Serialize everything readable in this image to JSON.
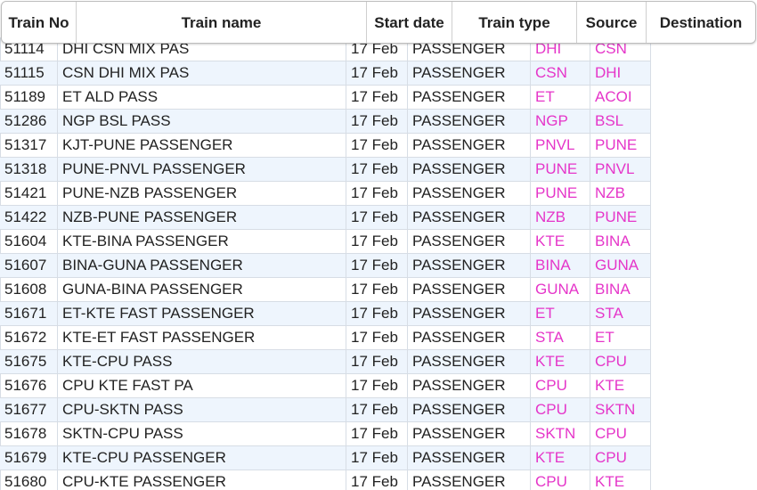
{
  "table": {
    "headers": {
      "train_no": "Train No",
      "train_name": "Train name",
      "start_date": "Start date",
      "train_type": "Train type",
      "source": "Source",
      "destination": "Destination"
    },
    "rows": [
      {
        "no": "51114",
        "name": "DHI CSN MIX PAS",
        "date": "17 Feb",
        "type": "PASSENGER",
        "src": "DHI",
        "dst": "CSN"
      },
      {
        "no": "51115",
        "name": "CSN DHI MIX PAS",
        "date": "17 Feb",
        "type": "PASSENGER",
        "src": "CSN",
        "dst": "DHI"
      },
      {
        "no": "51189",
        "name": "ET ALD PASS",
        "date": "17 Feb",
        "type": "PASSENGER",
        "src": "ET",
        "dst": "ACOI"
      },
      {
        "no": "51286",
        "name": "NGP BSL PASS",
        "date": "17 Feb",
        "type": "PASSENGER",
        "src": "NGP",
        "dst": "BSL"
      },
      {
        "no": "51317",
        "name": "KJT-PUNE PASSENGER",
        "date": "17 Feb",
        "type": "PASSENGER",
        "src": "PNVL",
        "dst": "PUNE"
      },
      {
        "no": "51318",
        "name": "PUNE-PNVL PASSENGER",
        "date": "17 Feb",
        "type": "PASSENGER",
        "src": "PUNE",
        "dst": "PNVL"
      },
      {
        "no": "51421",
        "name": "PUNE-NZB PASSENGER",
        "date": "17 Feb",
        "type": "PASSENGER",
        "src": "PUNE",
        "dst": "NZB"
      },
      {
        "no": "51422",
        "name": "NZB-PUNE PASSENGER",
        "date": "17 Feb",
        "type": "PASSENGER",
        "src": "NZB",
        "dst": "PUNE"
      },
      {
        "no": "51604",
        "name": "KTE-BINA PASSENGER",
        "date": "17 Feb",
        "type": "PASSENGER",
        "src": "KTE",
        "dst": "BINA"
      },
      {
        "no": "51607",
        "name": "BINA-GUNA PASSENGER",
        "date": "17 Feb",
        "type": "PASSENGER",
        "src": "BINA",
        "dst": "GUNA"
      },
      {
        "no": "51608",
        "name": "GUNA-BINA PASSENGER",
        "date": "17 Feb",
        "type": "PASSENGER",
        "src": "GUNA",
        "dst": "BINA"
      },
      {
        "no": "51671",
        "name": "ET-KTE FAST PASSENGER",
        "date": "17 Feb",
        "type": "PASSENGER",
        "src": "ET",
        "dst": "STA"
      },
      {
        "no": "51672",
        "name": "KTE-ET FAST PASSENGER",
        "date": "17 Feb",
        "type": "PASSENGER",
        "src": "STA",
        "dst": "ET"
      },
      {
        "no": "51675",
        "name": "KTE-CPU PASS",
        "date": "17 Feb",
        "type": "PASSENGER",
        "src": "KTE",
        "dst": "CPU"
      },
      {
        "no": "51676",
        "name": "CPU KTE FAST PA",
        "date": "17 Feb",
        "type": "PASSENGER",
        "src": "CPU",
        "dst": "KTE"
      },
      {
        "no": "51677",
        "name": "CPU-SKTN PASS",
        "date": "17 Feb",
        "type": "PASSENGER",
        "src": "CPU",
        "dst": "SKTN"
      },
      {
        "no": "51678",
        "name": "SKTN-CPU PASS",
        "date": "17 Feb",
        "type": "PASSENGER",
        "src": "SKTN",
        "dst": "CPU"
      },
      {
        "no": "51679",
        "name": "KTE-CPU PASSENGER",
        "date": "17 Feb",
        "type": "PASSENGER",
        "src": "KTE",
        "dst": "CPU"
      },
      {
        "no": "51680",
        "name": "CPU-KTE PASSENGER",
        "date": "17 Feb",
        "type": "PASSENGER",
        "src": "CPU",
        "dst": "KTE"
      }
    ]
  },
  "colors": {
    "station_code": "#e535c9",
    "alt_row": "#eef5fd"
  }
}
